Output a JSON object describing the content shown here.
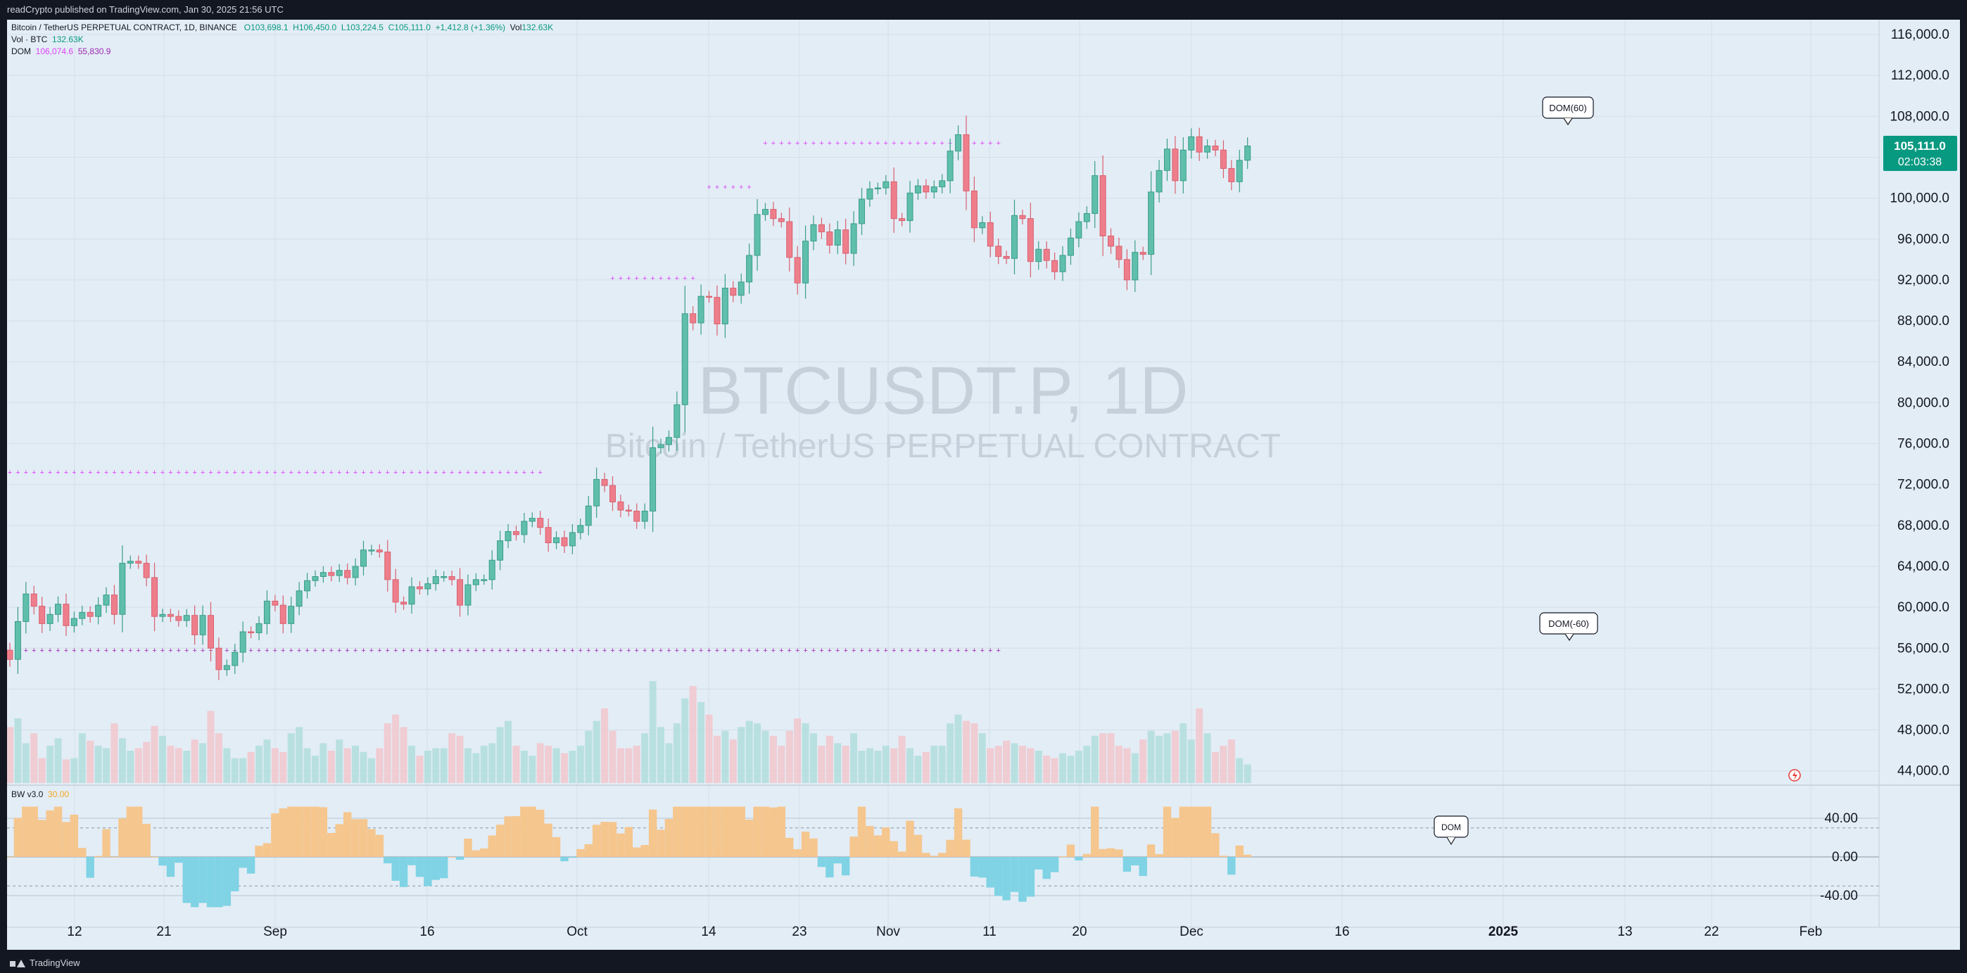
{
  "header": {
    "published": "readCrypto published on TradingView.com, Jan 30, 2025 21:56 UTC"
  },
  "footer": {
    "brand": "TradingView"
  },
  "legend": {
    "symbol": "Bitcoin / TetherUS PERPETUAL CONTRACT, 1D, BINANCE",
    "open": "O103,698.1",
    "high": "H106,450.0",
    "low": "L103,224.5",
    "close": "C105,111.0",
    "change": "+1,412.8 (+1.36%)",
    "vol_label": "Vol",
    "vol_value": "132.63K",
    "vol_row_label": "Vol · BTC",
    "vol_row_value": "132.63K",
    "dom_label": "DOM",
    "dom_value1": "106,074.6",
    "dom_value2": "55,830.9"
  },
  "watermark": {
    "ticker": "BTCUSDT.P, 1D",
    "name": "Bitcoin / TetherUS PERPETUAL CONTRACT"
  },
  "price_tag": {
    "price": "105,111.0",
    "countdown": "02:03:38"
  },
  "bw_panel": {
    "label": "BW v3.0",
    "value": "30.00"
  },
  "colors": {
    "up": "#5fbfac",
    "down": "#ee7e8b",
    "vol_up": "#b2dddd",
    "vol_down": "#f2c5cd",
    "dom_upper": "#e040fb",
    "dom_lower": "#9c27b0",
    "bw_pos": "#f5c68e",
    "bw_neg": "#7fd3e4",
    "tag_bg": "#089981"
  },
  "chart_data": {
    "type": "candlestick",
    "x_tick_labels": [
      "12",
      "21",
      "Sep",
      "16",
      "Oct",
      "14",
      "23",
      "Nov",
      "11",
      "20",
      "Dec",
      "16",
      "2025",
      "13",
      "22",
      "Feb"
    ],
    "y_tick_labels": [
      "116,000.0",
      "112,000.0",
      "108,000.0",
      "104,000.0",
      "100,000.0",
      "96,000.0",
      "92,000.0",
      "88,000.0",
      "84,000.0",
      "80,000.0",
      "76,000.0",
      "72,000.0",
      "68,000.0",
      "64,000.0",
      "60,000.0",
      "56,000.0",
      "52,000.0",
      "48,000.0",
      "44,000.0"
    ],
    "ylim": [
      43000,
      117000
    ],
    "close": [
      54900,
      58600,
      61300,
      60100,
      58400,
      59300,
      60300,
      58200,
      58900,
      59500,
      59100,
      60200,
      61200,
      59300,
      64300,
      64500,
      64300,
      62900,
      59100,
      59300,
      59100,
      58700,
      59200,
      57300,
      59200,
      56000,
      53900,
      54300,
      55600,
      57600,
      57500,
      58400,
      60600,
      60200,
      58400,
      60100,
      61600,
      62600,
      63000,
      63400,
      63100,
      63600,
      62900,
      64000,
      65600,
      65600,
      65400,
      62700,
      60500,
      60300,
      62000,
      61800,
      62300,
      63000,
      63000,
      62700,
      60200,
      62200,
      62700,
      62700,
      64600,
      66500,
      67400,
      67100,
      68400,
      68700,
      67800,
      66300,
      66800,
      66000,
      67300,
      68000,
      69900,
      72500,
      71900,
      70300,
      69500,
      69400,
      68400,
      69400,
      75600,
      75900,
      76600,
      79800,
      88700,
      87800,
      90400,
      90300,
      87700,
      91200,
      90500,
      91800,
      94400,
      98400,
      98900,
      98000,
      97700,
      94200,
      91700,
      95800,
      97400,
      96700,
      95400,
      96900,
      94600,
      97500,
      99900,
      100900,
      101000,
      101600,
      98000,
      97800,
      100500,
      101200,
      100600,
      101100,
      101700,
      104600,
      106200,
      100700,
      97100,
      97600,
      95300,
      94300,
      94100,
      98300,
      98000,
      93800,
      95000,
      93900,
      92800,
      94400,
      96100,
      97700,
      98500,
      102200,
      96300,
      95300,
      94000,
      92000,
      94700,
      94500,
      100600,
      102700,
      104800,
      101700,
      104700,
      106000,
      104500,
      105100,
      104700,
      102900,
      101600,
      103700,
      105100
    ],
    "volume": [
      45,
      52,
      32,
      40,
      20,
      30,
      36,
      19,
      20,
      40,
      34,
      30,
      28,
      48,
      36,
      26,
      28,
      33,
      46,
      38,
      30,
      28,
      26,
      35,
      32,
      58,
      40,
      28,
      20,
      20,
      25,
      30,
      35,
      28,
      25,
      40,
      45,
      28,
      22,
      32,
      26,
      35,
      28,
      30,
      25,
      20,
      28,
      48,
      55,
      45,
      30,
      22,
      26,
      28,
      28,
      40,
      38,
      28,
      24,
      30,
      32,
      45,
      50,
      30,
      26,
      22,
      32,
      30,
      28,
      24,
      26,
      30,
      42,
      50,
      60,
      42,
      28,
      28,
      30,
      40,
      82,
      45,
      32,
      48,
      68,
      78,
      65,
      55,
      38,
      42,
      35,
      45,
      50,
      48,
      42,
      38,
      30,
      42,
      52,
      48,
      40,
      30,
      38,
      32,
      30,
      40,
      26,
      28,
      26,
      30,
      28,
      38,
      28,
      22,
      25,
      30,
      30,
      48,
      55,
      50,
      48,
      40,
      28,
      30,
      34,
      32,
      30,
      28,
      26,
      22,
      20,
      24,
      22,
      26,
      30,
      38,
      40,
      40,
      30,
      28,
      24,
      35,
      42,
      38,
      40,
      42,
      48,
      35,
      60,
      40,
      25,
      30,
      35,
      20,
      15
    ]
  },
  "annotations": {
    "dom_upper": {
      "label": "DOM(60)",
      "level": 105400
    },
    "dom_lower": {
      "label": "DOM(-60)",
      "level": 55800
    },
    "dom_mid_upper": {
      "level": 92200
    },
    "dom_left_upper": {
      "level": 73200
    },
    "dom_dec": {
      "level": 101100
    },
    "bw_marker": {
      "label": "DOM"
    }
  },
  "bw_chart": {
    "y_tick_labels": [
      "40.00",
      "0.00",
      "-40.00"
    ],
    "dashed_levels": [
      30,
      -30
    ]
  }
}
